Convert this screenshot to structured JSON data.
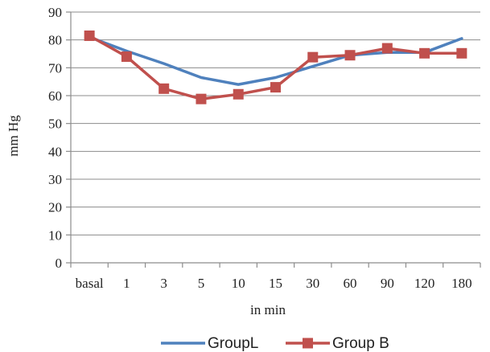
{
  "chart_data": {
    "type": "line",
    "categories": [
      "basal",
      "1",
      "3",
      "5",
      "10",
      "15",
      "30",
      "60",
      "90",
      "120",
      "180"
    ],
    "xlabel": "in min",
    "ylabel": "mm Hg",
    "ylim": [
      0,
      90
    ],
    "yticks": [
      0,
      10,
      20,
      30,
      40,
      50,
      60,
      70,
      80,
      90
    ],
    "grid": "horizontal",
    "legend": "bottom",
    "series": [
      {
        "name": "GroupL",
        "color": "#4f81bd",
        "marker": "none",
        "values": [
          81,
          76,
          71.5,
          66.5,
          64,
          66.5,
          70.5,
          74.5,
          75.5,
          75.5,
          80.5
        ]
      },
      {
        "name": "Group B",
        "color": "#c0504d",
        "marker": "square",
        "values": [
          81.5,
          74,
          62.5,
          58.8,
          60.5,
          63,
          73.8,
          74.5,
          77,
          75.2,
          75.2
        ]
      }
    ]
  }
}
